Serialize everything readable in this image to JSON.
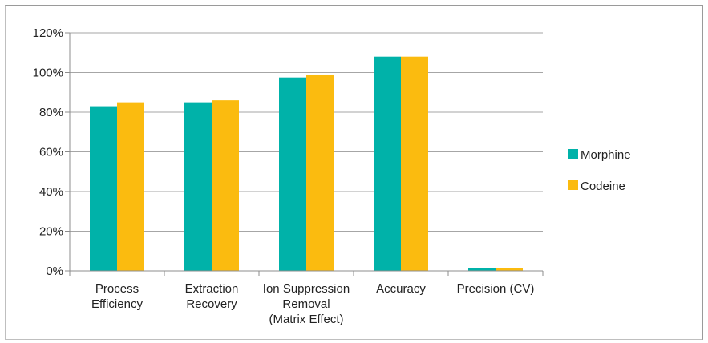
{
  "chart_data": {
    "type": "bar",
    "categories": [
      [
        "Process",
        "Efficiency"
      ],
      [
        "Extraction",
        "Recovery"
      ],
      [
        "Ion Suppression",
        "Removal",
        "(Matrix Effect)"
      ],
      [
        "Accuracy"
      ],
      [
        "Precision (CV)"
      ]
    ],
    "series": [
      {
        "name": "Morphine",
        "color": "#00b2a9",
        "values": [
          83,
          85,
          97.5,
          108,
          1.5
        ]
      },
      {
        "name": "Codeine",
        "color": "#fbbb0f",
        "values": [
          85,
          86,
          99,
          108,
          1.5
        ]
      }
    ],
    "yticks": [
      "0%",
      "20%",
      "40%",
      "60%",
      "80%",
      "100%",
      "120%"
    ],
    "ylim": [
      0,
      120
    ],
    "grid": true,
    "legend_position": "right",
    "title": "",
    "xlabel": "",
    "ylabel": ""
  }
}
